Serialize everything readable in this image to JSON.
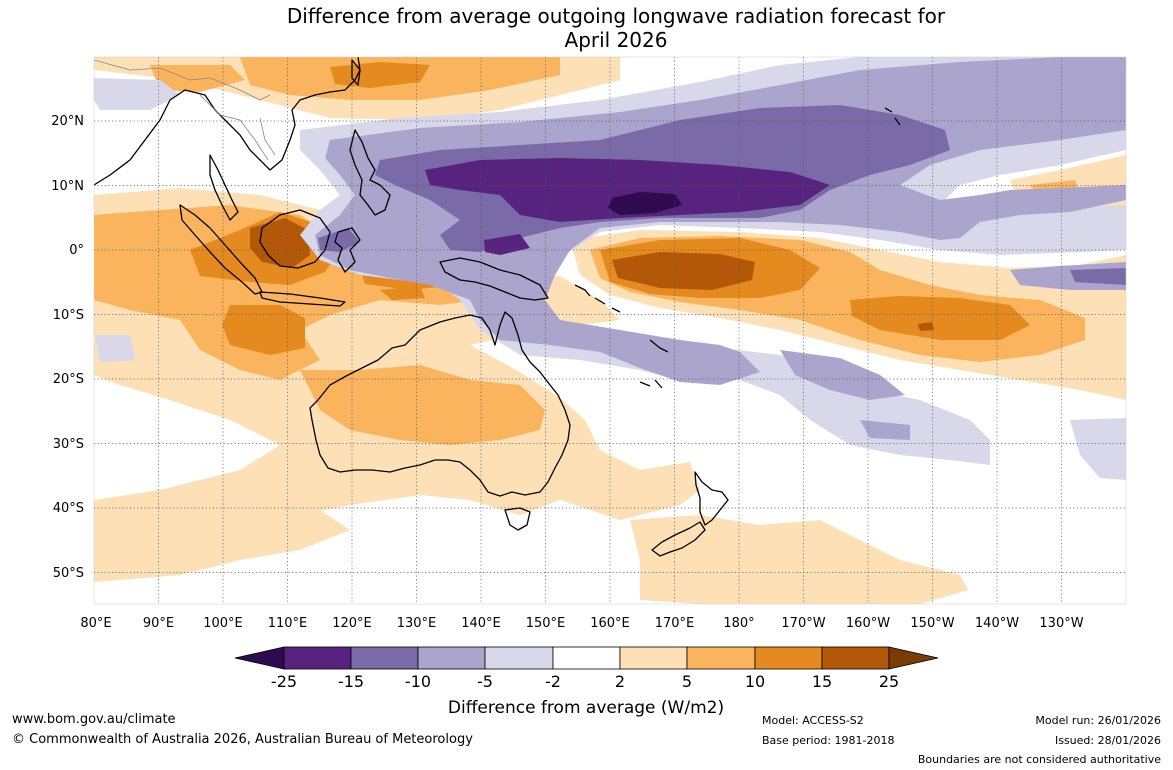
{
  "title": {
    "line1": "Difference from average outgoing longwave radiation forecast for",
    "line2": "April 2026"
  },
  "map": {
    "lat_labels": [
      "20°N",
      "10°N",
      "0°",
      "10°S",
      "20°S",
      "30°S",
      "40°S",
      "50°S"
    ],
    "lon_labels": [
      "80°E",
      "90°E",
      "100°E",
      "110°E",
      "120°E",
      "130°E",
      "140°E",
      "150°E",
      "160°E",
      "170°E",
      "180°",
      "170°W",
      "160°W",
      "150°W",
      "140°W",
      "130°W"
    ]
  },
  "legend": {
    "title": "Difference from average (W/m2)",
    "ticks": [
      "-25",
      "-15",
      "-10",
      "-5",
      "-2",
      "2",
      "5",
      "10",
      "15",
      "25"
    ],
    "colors": [
      "#2e0a4e",
      "#57237f",
      "#7a6aa8",
      "#aba4cc",
      "#d8d8ea",
      "#ffffff",
      "#fde0b6",
      "#fbb45e",
      "#e58a1f",
      "#b35808",
      "#7b3b05"
    ]
  },
  "colors": {
    "land": "#000000",
    "grid": "#555555"
  },
  "footer": {
    "url": "www.bom.gov.au/climate",
    "copyright": "© Commonwealth of Australia 2026, Australian Bureau of Meteorology",
    "model": "Model: ACCESS-S2",
    "base_period": "Base period: 1981-2018",
    "model_run": "Model run: 26/01/2026",
    "issued": "Issued: 28/01/2026",
    "disclaimer": "Boundaries are not considered authoritative"
  }
}
